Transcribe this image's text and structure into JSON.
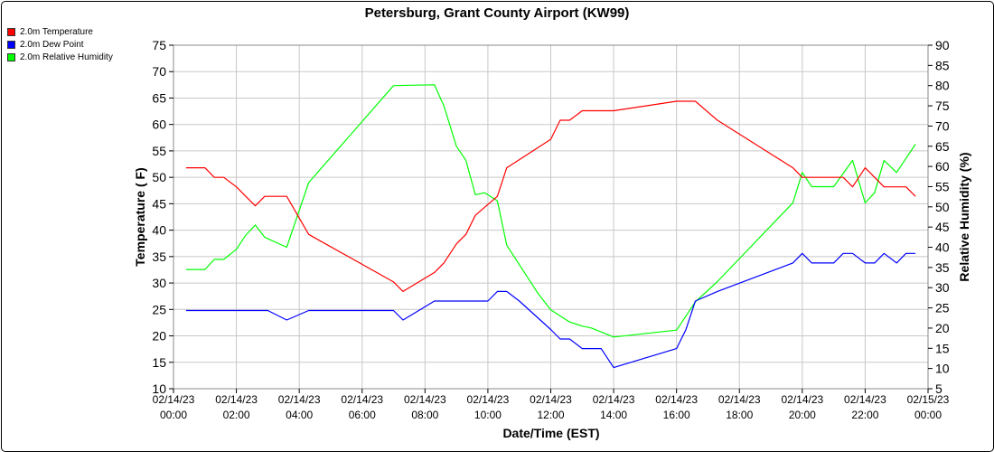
{
  "chart_data": {
    "type": "line",
    "title": "Petersburg, Grant County Airport (KW99)",
    "xlabel": "Date/Time (EST)",
    "ylabel": "Temperature ( F)",
    "y2label": "Relative Humidity (%)",
    "x_ticks": [
      [
        "02/14/23",
        "00:00"
      ],
      [
        "02/14/23",
        "02:00"
      ],
      [
        "02/14/23",
        "04:00"
      ],
      [
        "02/14/23",
        "06:00"
      ],
      [
        "02/14/23",
        "08:00"
      ],
      [
        "02/14/23",
        "10:00"
      ],
      [
        "02/14/23",
        "12:00"
      ],
      [
        "02/14/23",
        "14:00"
      ],
      [
        "02/14/23",
        "16:00"
      ],
      [
        "02/14/23",
        "18:00"
      ],
      [
        "02/14/23",
        "20:00"
      ],
      [
        "02/14/23",
        "22:00"
      ],
      [
        "02/15/23",
        "00:00"
      ]
    ],
    "ylim": [
      10,
      75
    ],
    "yticks": [
      10,
      15,
      20,
      25,
      30,
      35,
      40,
      45,
      50,
      55,
      60,
      65,
      70,
      75
    ],
    "y2lim": [
      5,
      90
    ],
    "y2ticks": [
      5,
      10,
      15,
      20,
      25,
      30,
      35,
      40,
      45,
      50,
      55,
      60,
      65,
      70,
      75,
      80,
      85,
      90
    ],
    "grid": true,
    "legend_position": "top-left",
    "series": [
      {
        "name": "2.0m Temperature",
        "axis": "left",
        "color": "#ff0000",
        "points": [
          [
            0.4,
            51.8
          ],
          [
            0.6,
            51.8
          ],
          [
            1.0,
            51.8
          ],
          [
            1.3,
            50.0
          ],
          [
            1.6,
            50.0
          ],
          [
            2.0,
            48.2
          ],
          [
            2.3,
            46.4
          ],
          [
            2.6,
            44.6
          ],
          [
            2.9,
            46.4
          ],
          [
            3.6,
            46.4
          ],
          [
            4.3,
            39.2
          ],
          [
            7.0,
            30.2
          ],
          [
            7.3,
            28.4
          ],
          [
            8.3,
            32.0
          ],
          [
            8.6,
            33.8
          ],
          [
            9.0,
            37.4
          ],
          [
            9.3,
            39.2
          ],
          [
            9.6,
            42.8
          ],
          [
            10.3,
            46.4
          ],
          [
            10.6,
            51.8
          ],
          [
            12.0,
            57.2
          ],
          [
            12.3,
            60.8
          ],
          [
            12.6,
            60.8
          ],
          [
            13.0,
            62.6
          ],
          [
            14.0,
            62.6
          ],
          [
            16.0,
            64.4
          ],
          [
            16.6,
            64.4
          ],
          [
            17.3,
            60.8
          ],
          [
            19.7,
            51.8
          ],
          [
            20.0,
            50.0
          ],
          [
            21.3,
            50.0
          ],
          [
            21.6,
            48.2
          ],
          [
            22.0,
            51.8
          ],
          [
            22.6,
            48.2
          ],
          [
            23.3,
            48.2
          ],
          [
            23.6,
            46.4
          ]
        ]
      },
      {
        "name": "2.0m Dew Point",
        "axis": "left",
        "color": "#0000ff",
        "points": [
          [
            0.4,
            24.8
          ],
          [
            3.0,
            24.8
          ],
          [
            3.6,
            23.0
          ],
          [
            4.3,
            24.8
          ],
          [
            7.0,
            24.8
          ],
          [
            7.3,
            23.0
          ],
          [
            8.3,
            26.6
          ],
          [
            9.0,
            26.6
          ],
          [
            10.0,
            26.6
          ],
          [
            10.3,
            28.4
          ],
          [
            10.6,
            28.4
          ],
          [
            11.0,
            26.6
          ],
          [
            12.0,
            21.2
          ],
          [
            12.3,
            19.4
          ],
          [
            12.6,
            19.4
          ],
          [
            13.0,
            17.6
          ],
          [
            13.6,
            17.6
          ],
          [
            14.0,
            14.0
          ],
          [
            16.0,
            17.6
          ],
          [
            16.3,
            21.2
          ],
          [
            16.6,
            26.6
          ],
          [
            17.3,
            28.4
          ],
          [
            19.7,
            33.8
          ],
          [
            20.0,
            35.6
          ],
          [
            20.3,
            33.8
          ],
          [
            21.0,
            33.8
          ],
          [
            21.3,
            35.6
          ],
          [
            21.6,
            35.6
          ],
          [
            22.0,
            33.8
          ],
          [
            22.3,
            33.8
          ],
          [
            22.6,
            35.6
          ],
          [
            23.0,
            33.8
          ],
          [
            23.3,
            35.6
          ],
          [
            23.6,
            35.6
          ]
        ]
      },
      {
        "name": "2.0m Relative Humidity",
        "axis": "right",
        "color": "#00ff00",
        "points": [
          [
            0.4,
            34.5
          ],
          [
            1.0,
            34.5
          ],
          [
            1.3,
            37.0
          ],
          [
            1.6,
            37.0
          ],
          [
            2.0,
            39.5
          ],
          [
            2.3,
            43.0
          ],
          [
            2.6,
            45.5
          ],
          [
            2.9,
            42.5
          ],
          [
            3.6,
            40.0
          ],
          [
            4.3,
            56.0
          ],
          [
            7.0,
            80.0
          ],
          [
            8.3,
            80.2
          ],
          [
            8.6,
            75.0
          ],
          [
            9.0,
            65.0
          ],
          [
            9.3,
            61.5
          ],
          [
            9.6,
            53.0
          ],
          [
            9.9,
            53.5
          ],
          [
            10.3,
            51.5
          ],
          [
            10.6,
            40.5
          ],
          [
            11.6,
            28.5
          ],
          [
            12.0,
            24.5
          ],
          [
            12.6,
            21.5
          ],
          [
            13.0,
            20.5
          ],
          [
            13.3,
            20.0
          ],
          [
            14.0,
            17.8
          ],
          [
            16.0,
            19.5
          ],
          [
            16.6,
            26.5
          ],
          [
            17.3,
            31.5
          ],
          [
            19.7,
            51.0
          ],
          [
            20.0,
            58.5
          ],
          [
            20.3,
            55.0
          ],
          [
            21.0,
            55.0
          ],
          [
            21.6,
            61.5
          ],
          [
            22.0,
            51.0
          ],
          [
            22.3,
            53.5
          ],
          [
            22.6,
            61.5
          ],
          [
            23.0,
            58.5
          ],
          [
            23.3,
            62.0
          ],
          [
            23.6,
            65.5
          ]
        ]
      }
    ]
  }
}
